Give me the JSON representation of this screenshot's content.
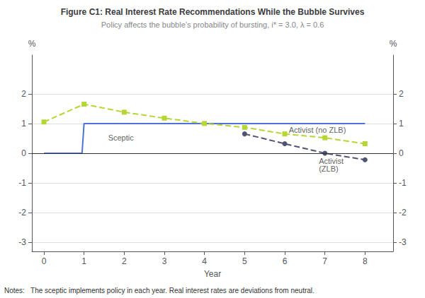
{
  "chart_data": {
    "type": "line",
    "title": "Figure C1: Real Interest Rate Recommendations While the Bubble Survives",
    "subtitle": "Policy affects the bubble’s probability of bursting, i* = 3.0, λ = 0.6",
    "xlabel": "Year",
    "ylabel": "%",
    "y2label": "%",
    "notes": "Notes:   The sceptic implements policy in each year. Real interest rates are deviations from neutral.",
    "xlim": [
      -0.3,
      8.7
    ],
    "xticks": [
      0,
      1,
      2,
      3,
      4,
      5,
      6,
      7,
      8
    ],
    "ylim": [
      -3.3,
      3.3
    ],
    "yticks": [
      -3,
      -2,
      -1,
      0,
      1,
      2
    ],
    "y2lim": [
      -3.3,
      3.3
    ],
    "y2ticks": [
      -3,
      -2,
      -1,
      0,
      1,
      2
    ],
    "grid": true,
    "hlines": [
      0
    ],
    "series": [
      {
        "x": [
          0,
          0.95,
          1,
          2,
          3,
          4,
          5,
          6,
          7,
          8
        ],
        "values": [
          0,
          0,
          1,
          1,
          1,
          1,
          1,
          1,
          1,
          1
        ],
        "line_style": "solid",
        "marker": "none"
      },
      {
        "x": [
          0,
          1,
          2,
          3,
          4,
          5,
          6,
          7,
          8
        ],
        "values": [
          1.05,
          1.65,
          1.38,
          1.18,
          1.0,
          0.87,
          0.65,
          0.52,
          0.32
        ],
        "line_style": "dashed",
        "marker": "square"
      },
      {
        "x": [
          5,
          6,
          7,
          8
        ],
        "values": [
          0.65,
          0.32,
          0.0,
          -0.22
        ],
        "line_style": "dashed",
        "marker": "circle"
      }
    ],
    "annotations": [
      {
        "text": "Sceptic",
        "x": 1.6,
        "y": 0.52
      },
      {
        "text": "Activist (no ZLB)",
        "x": 6.1,
        "y": 0.78
      },
      {
        "text": "Activist\n(ZLB)",
        "x": 6.85,
        "y": -0.38
      }
    ]
  }
}
